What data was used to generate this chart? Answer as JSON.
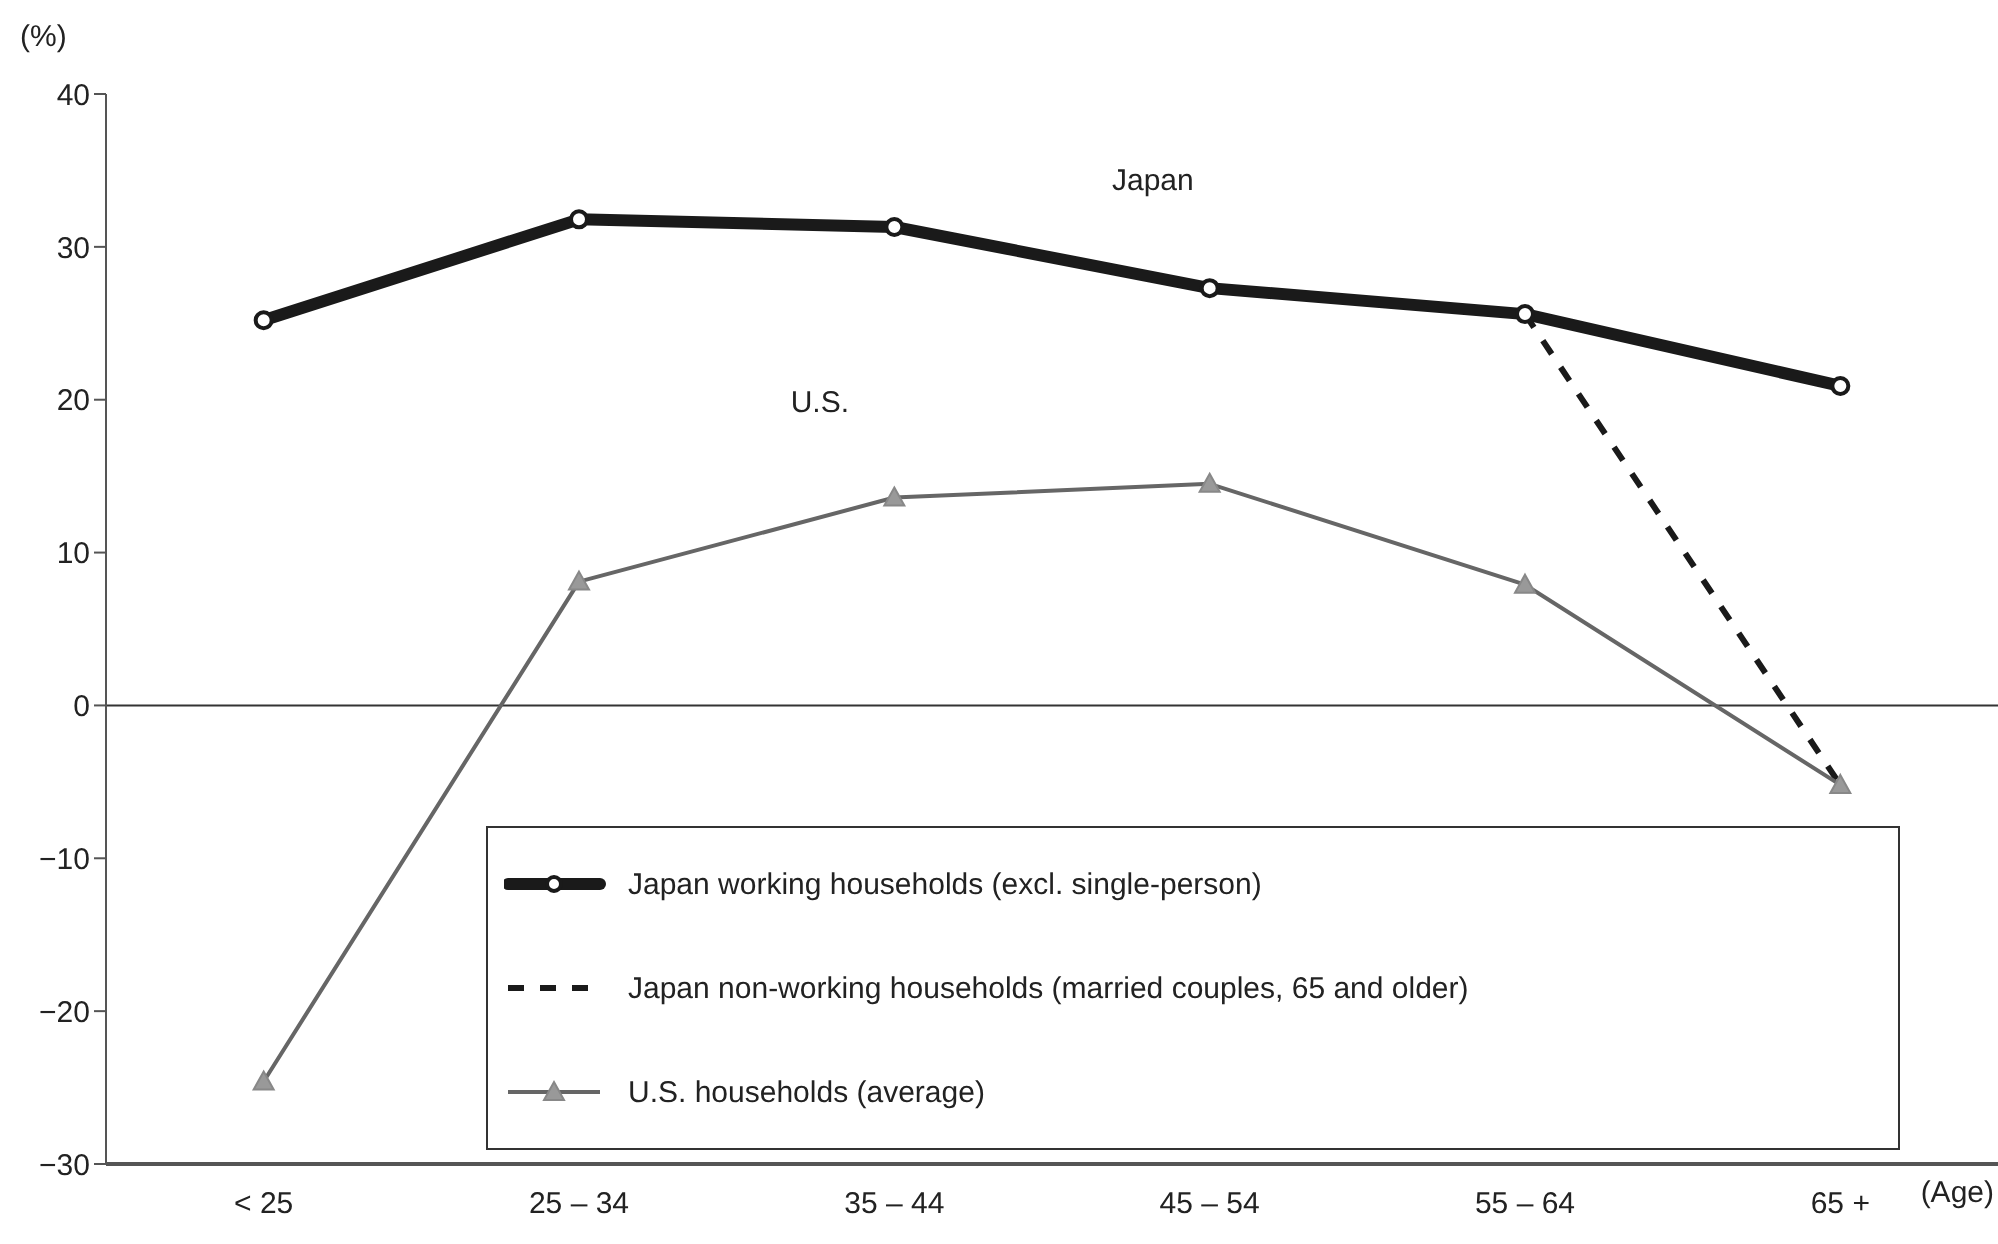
{
  "chart_data": {
    "type": "line",
    "ylabel": "(%)",
    "xlabel": "(Age)",
    "categories": [
      "< 25",
      "25 – 34",
      "35 – 44",
      "45 – 54",
      "55 – 64",
      "65 +"
    ],
    "series": [
      {
        "name": "Japan working households (excl. single-person)",
        "color": "#1a1a1a",
        "values": [
          25.2,
          31.8,
          31.3,
          27.3,
          25.6,
          20.9
        ],
        "marker": "circle",
        "line_style": "solid"
      },
      {
        "name": "Japan non-working households (married couples, 65 and older)",
        "color": "#1a1a1a",
        "values": [
          null,
          null,
          null,
          null,
          25.6,
          -5.2
        ],
        "line_style": "dashed"
      },
      {
        "name": "U.S. households (average)",
        "color": "#666666",
        "values": [
          -24.6,
          8.1,
          13.6,
          14.5,
          7.9,
          -5.2
        ],
        "marker": "triangle",
        "line_style": "solid"
      }
    ],
    "ylim": [
      -30,
      40
    ],
    "yticks": [
      {
        "value": -30,
        "label": "−30"
      },
      {
        "value": -20,
        "label": "−20"
      },
      {
        "value": -10,
        "label": "−10"
      },
      0,
      10,
      20,
      30,
      40
    ],
    "ref_lines": [
      {
        "axis": "y",
        "value": 0,
        "color": "#333333"
      }
    ],
    "annotations": [
      "Japan",
      "U.S."
    ],
    "grid": false,
    "legend": "bottom right"
  }
}
